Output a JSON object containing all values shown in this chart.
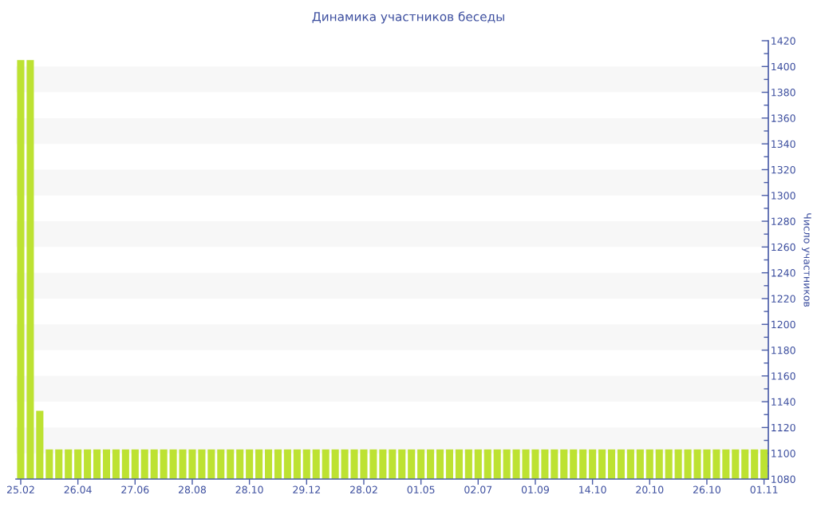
{
  "chart_data": {
    "type": "bar",
    "title": "Динамика участников беседы",
    "ylabel": "Число участников",
    "categories": [
      "25.02",
      null,
      null,
      null,
      null,
      null,
      "26.04",
      null,
      null,
      null,
      null,
      null,
      "27.06",
      null,
      null,
      null,
      null,
      null,
      "28.08",
      null,
      null,
      null,
      null,
      null,
      "28.10",
      null,
      null,
      null,
      null,
      null,
      "29.12",
      null,
      null,
      null,
      null,
      null,
      "28.02",
      null,
      null,
      null,
      null,
      null,
      "01.05",
      null,
      null,
      null,
      null,
      null,
      "02.07",
      null,
      null,
      null,
      null,
      null,
      "01.09",
      null,
      null,
      null,
      null,
      null,
      "14.10",
      null,
      null,
      null,
      null,
      null,
      "20.10",
      null,
      null,
      null,
      null,
      null,
      "26.10",
      null,
      null,
      null,
      null,
      null,
      "01.11"
    ],
    "values": [
      1405,
      1405,
      1133,
      1103,
      1103,
      1103,
      1103,
      1103,
      1103,
      1103,
      1103,
      1103,
      1103,
      1103,
      1103,
      1103,
      1103,
      1103,
      1103,
      1103,
      1103,
      1103,
      1103,
      1103,
      1103,
      1103,
      1103,
      1103,
      1103,
      1103,
      1103,
      1103,
      1103,
      1103,
      1103,
      1103,
      1103,
      1103,
      1103,
      1103,
      1103,
      1103,
      1103,
      1103,
      1103,
      1103,
      1103,
      1103,
      1103,
      1103,
      1103,
      1103,
      1103,
      1103,
      1103,
      1103,
      1103,
      1103,
      1103,
      1103,
      1103,
      1103,
      1103,
      1103,
      1103,
      1103,
      1103,
      1103,
      1103,
      1103,
      1103,
      1103,
      1103,
      1103,
      1103,
      1103,
      1103,
      1103,
      1103
    ],
    "color": "#bde232",
    "ylim": [
      1080,
      1420
    ],
    "yticks": [
      1080,
      1100,
      1120,
      1140,
      1160,
      1180,
      1200,
      1220,
      1240,
      1260,
      1280,
      1300,
      1320,
      1340,
      1360,
      1380,
      1400,
      1420
    ],
    "bands": [
      {
        "axis": "y",
        "from": 1100,
        "to": 1120,
        "color": "#f7f7f7"
      },
      {
        "axis": "y",
        "from": 1140,
        "to": 1160,
        "color": "#f7f7f7"
      },
      {
        "axis": "y",
        "from": 1180,
        "to": 1200,
        "color": "#f7f7f7"
      },
      {
        "axis": "y",
        "from": 1220,
        "to": 1240,
        "color": "#f7f7f7"
      },
      {
        "axis": "y",
        "from": 1260,
        "to": 1280,
        "color": "#f7f7f7"
      },
      {
        "axis": "y",
        "from": 1300,
        "to": 1320,
        "color": "#f7f7f7"
      },
      {
        "axis": "y",
        "from": 1340,
        "to": 1360,
        "color": "#f7f7f7"
      },
      {
        "axis": "y",
        "from": 1380,
        "to": 1400,
        "color": "#f7f7f7"
      }
    ]
  }
}
